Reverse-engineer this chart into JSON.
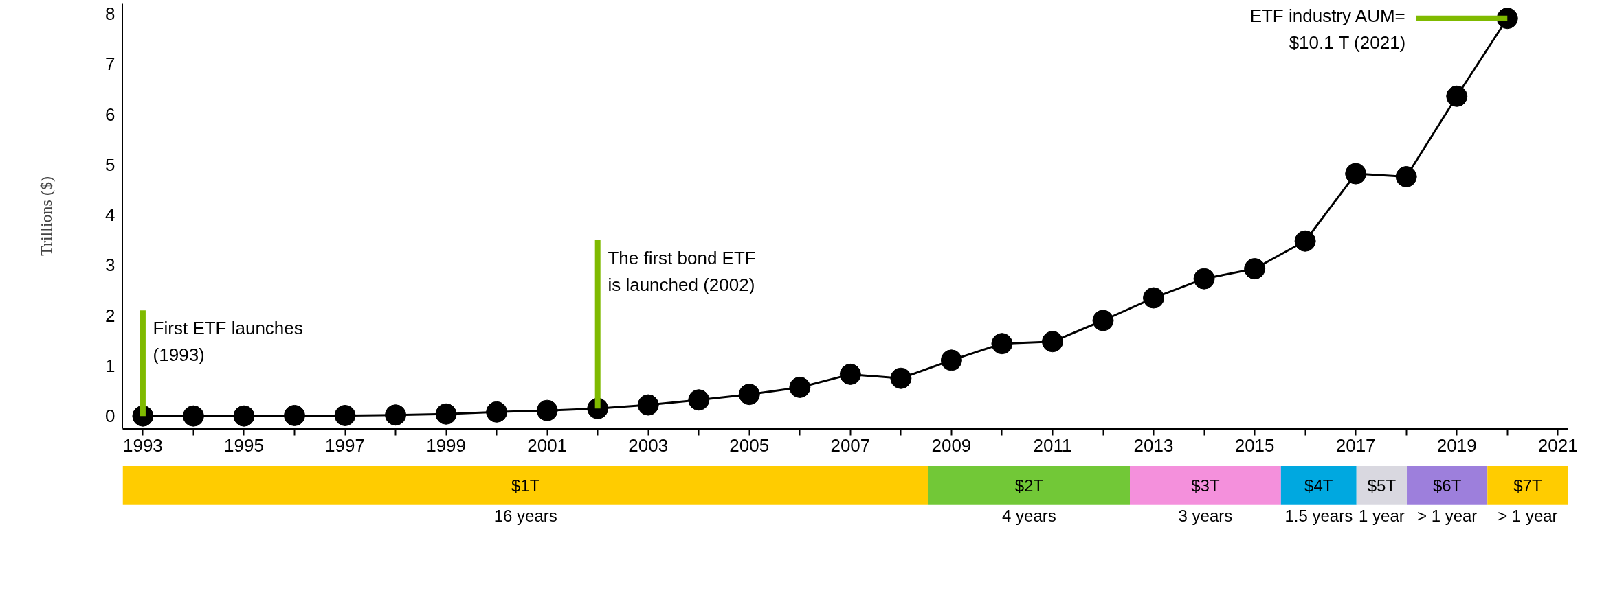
{
  "chart_data": [
    {
      "type": "line",
      "ylabel": "Trillions ($)",
      "x": [
        1993,
        1994,
        1995,
        1996,
        1997,
        1998,
        1999,
        2000,
        2001,
        2002,
        2003,
        2004,
        2005,
        2006,
        2007,
        2008,
        2009,
        2010,
        2011,
        2012,
        2013,
        2014,
        2015,
        2016,
        2017,
        2018,
        2019,
        2020
      ],
      "series": [
        {
          "color": "#000000",
          "values": [
            0,
            0,
            0,
            0.01,
            0.01,
            0.02,
            0.04,
            0.08,
            0.11,
            0.15,
            0.22,
            0.32,
            0.43,
            0.57,
            0.83,
            0.75,
            1.11,
            1.44,
            1.48,
            1.9,
            2.35,
            2.73,
            2.93,
            3.48,
            4.82,
            4.76,
            6.36,
            7.91
          ]
        }
      ],
      "marker": "circle",
      "line_style": "solid",
      "grid": false,
      "xlim": [
        1992.6,
        2021.2
      ],
      "ylim": [
        -0.25,
        8.2
      ],
      "xticks": [
        1993,
        {
          "value": 1994,
          "label": null
        },
        1995,
        {
          "value": 1996,
          "label": null
        },
        1997,
        {
          "value": 1998,
          "label": null
        },
        1999,
        {
          "value": 2000,
          "label": null
        },
        2001,
        {
          "value": 2002,
          "label": null
        },
        2003,
        {
          "value": 2004,
          "label": null
        },
        2005,
        {
          "value": 2006,
          "label": null
        },
        2007,
        {
          "value": 2008,
          "label": null
        },
        2009,
        {
          "value": 2010,
          "label": null
        },
        2011,
        {
          "value": 2012,
          "label": null
        },
        2013,
        {
          "value": 2014,
          "label": null
        },
        2015,
        {
          "value": 2016,
          "label": null
        },
        2017,
        {
          "value": 2018,
          "label": null
        },
        2019,
        {
          "value": 2020,
          "label": null
        },
        2021
      ],
      "yticks": [
        0,
        1,
        2,
        3,
        4,
        5,
        6,
        7,
        8
      ],
      "annotations": [
        {
          "text": "First ETF  launches\n(1993)",
          "x": 1993,
          "y": 0
        },
        {
          "text": "The first  bond  ETF\nis launched  (2002)",
          "x": 2002,
          "y": 0.15
        },
        {
          "text": "ETF industry AUM=\n$10.1 T (2021)",
          "x": 2020,
          "y": 7.91
        }
      ]
    },
    {
      "type": "bar",
      "orientation": "horizontal",
      "stacked": true,
      "tick_labels": false,
      "categories": [
        null
      ],
      "series": [
        {
          "name": "$1T",
          "color": "#ffcc00",
          "values": [
            16
          ],
          "value_labels": [
            "16 years"
          ]
        },
        {
          "name": "$2T",
          "color": "#72c837",
          "values": [
            4
          ],
          "value_labels": [
            "4 years"
          ]
        },
        {
          "name": "$3T",
          "color": "#f490dc",
          "values": [
            3
          ],
          "value_labels": [
            "3 years"
          ]
        },
        {
          "name": "$4T",
          "color": "#00a8e0",
          "values": [
            1.5
          ],
          "value_labels": [
            "1.5 years"
          ]
        },
        {
          "name": "$5T",
          "color": "#d9d8e0",
          "values": [
            1
          ],
          "value_labels": [
            "1 year"
          ]
        },
        {
          "name": "$6T",
          "color": "#9d7fdc",
          "values": [
            1.6
          ],
          "value_labels": [
            "> 1 year"
          ]
        },
        {
          "name": "$7T",
          "color": "#ffcc00",
          "values": [
            1.6
          ],
          "value_labels": [
            "> 1 year"
          ]
        }
      ]
    }
  ]
}
